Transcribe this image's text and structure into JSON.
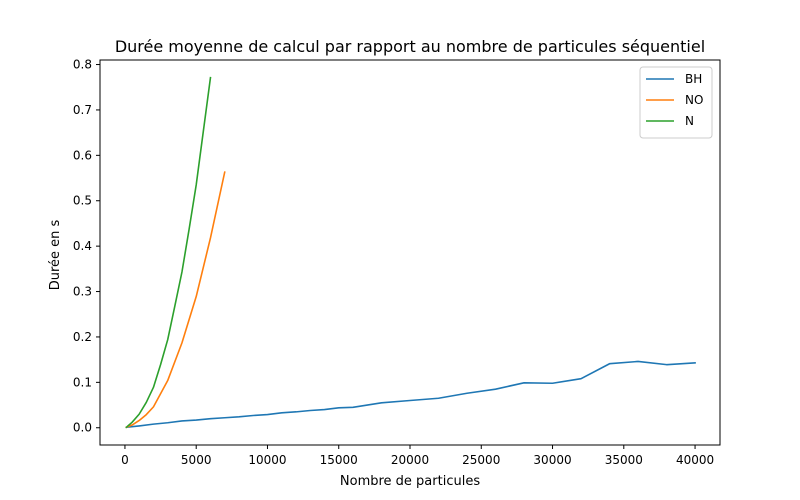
{
  "chart_data": {
    "type": "line",
    "title": "Durée moyenne de calcul par rapport au nombre de particules séquentiel",
    "xlabel": "Nombre de particules",
    "ylabel": "Durée en s",
    "xlim": [
      -1750,
      41750
    ],
    "ylim": [
      -0.038,
      0.81
    ],
    "xticks": [
      0,
      5000,
      10000,
      15000,
      20000,
      25000,
      30000,
      35000,
      40000
    ],
    "yticks": [
      0.0,
      0.1,
      0.2,
      0.3,
      0.4,
      0.5,
      0.6,
      0.7,
      0.8
    ],
    "xtick_labels": [
      "0",
      "5000",
      "10000",
      "15000",
      "20000",
      "25000",
      "30000",
      "35000",
      "40000"
    ],
    "ytick_labels": [
      "0.0",
      "0.1",
      "0.2",
      "0.3",
      "0.4",
      "0.5",
      "0.6",
      "0.7",
      "0.8"
    ],
    "grid": false,
    "legend_position": "top-right",
    "series": [
      {
        "name": "BH",
        "color": "#1f77b4",
        "x": [
          100,
          1000,
          2000,
          3000,
          4000,
          5000,
          6000,
          7000,
          8000,
          9000,
          10000,
          11000,
          12000,
          13000,
          14000,
          15000,
          16000,
          18000,
          20000,
          22000,
          24000,
          26000,
          28000,
          30000,
          32000,
          34000,
          36000,
          38000,
          40000
        ],
        "y": [
          0.001,
          0.004,
          0.008,
          0.011,
          0.015,
          0.017,
          0.02,
          0.022,
          0.024,
          0.027,
          0.029,
          0.033,
          0.035,
          0.038,
          0.04,
          0.044,
          0.045,
          0.055,
          0.06,
          0.065,
          0.076,
          0.085,
          0.099,
          0.098,
          0.108,
          0.141,
          0.146,
          0.139,
          0.143
        ]
      },
      {
        "name": "NO",
        "color": "#ff7f0e",
        "x": [
          100,
          500,
          1000,
          1500,
          2000,
          3000,
          4000,
          5000,
          6000,
          7000
        ],
        "y": [
          0.001,
          0.006,
          0.016,
          0.029,
          0.046,
          0.104,
          0.187,
          0.289,
          0.418,
          0.563
        ]
      },
      {
        "name": "N",
        "color": "#2ca02c",
        "x": [
          100,
          500,
          1000,
          1500,
          2000,
          2500,
          3000,
          3500,
          4000,
          4500,
          5000,
          5500,
          6000
        ],
        "y": [
          0.001,
          0.012,
          0.03,
          0.056,
          0.089,
          0.139,
          0.194,
          0.268,
          0.343,
          0.437,
          0.535,
          0.653,
          0.771
        ]
      }
    ]
  }
}
